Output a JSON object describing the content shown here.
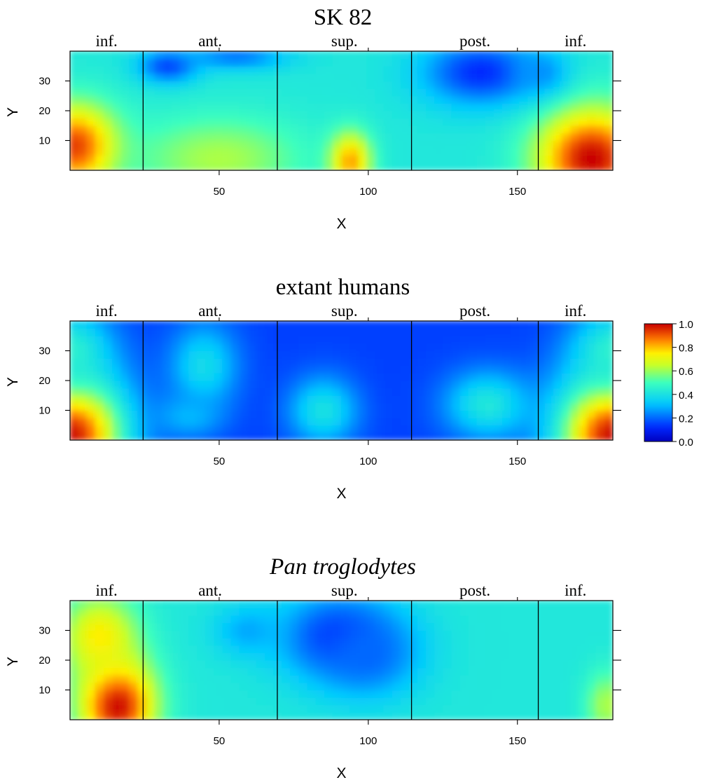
{
  "chart_data": {
    "type": "heatmap",
    "panels": [
      {
        "title": "SK 82",
        "title_style": "normal",
        "xlabel": "X",
        "ylabel": "Y",
        "xlim": [
          0,
          182
        ],
        "ylim": [
          0,
          40
        ],
        "xticks": [
          50,
          100,
          150
        ],
        "yticks": [
          10,
          20,
          30
        ],
        "region_labels": [
          "inf.",
          "ant.",
          "sup.",
          "post.",
          "inf."
        ],
        "region_boundaries": [
          24.5,
          69.5,
          114.5,
          157
        ],
        "hotspots": [
          {
            "x": 2,
            "y": 8,
            "sx": 10,
            "sy": 10,
            "value": 0.95
          },
          {
            "x": 175,
            "y": 4,
            "sx": 13,
            "sy": 12,
            "value": 1.0
          },
          {
            "x": 94,
            "y": 3,
            "sx": 5,
            "sy": 7,
            "value": 0.85
          },
          {
            "x": 50,
            "y": 4,
            "sx": 20,
            "sy": 10,
            "value": 0.62
          },
          {
            "x": 33,
            "y": 35,
            "sx": 7,
            "sy": 4,
            "value": 0.15
          },
          {
            "x": 56,
            "y": 38,
            "sx": 12,
            "sy": 3,
            "value": 0.22
          },
          {
            "x": 138,
            "y": 33,
            "sx": 14,
            "sy": 8,
            "value": 0.12
          },
          {
            "x": 158,
            "y": 33,
            "sx": 6,
            "sy": 5,
            "value": 0.25
          }
        ],
        "background_value": 0.42
      },
      {
        "title": "extant humans",
        "title_style": "normal",
        "xlabel": "X",
        "ylabel": "Y",
        "xlim": [
          0,
          182
        ],
        "ylim": [
          0,
          40
        ],
        "xticks": [
          50,
          100,
          150
        ],
        "yticks": [
          10,
          20,
          30
        ],
        "region_labels": [
          "inf.",
          "ant.",
          "sup.",
          "post.",
          "inf."
        ],
        "region_boundaries": [
          24.5,
          69.5,
          114.5,
          157
        ],
        "hotspots": [
          {
            "x": 0,
            "y": 2,
            "sx": 13,
            "sy": 14,
            "value": 1.0
          },
          {
            "x": 182,
            "y": 2,
            "sx": 13,
            "sy": 14,
            "value": 1.0
          },
          {
            "x": 0,
            "y": 30,
            "sx": 10,
            "sy": 10,
            "value": 0.45
          },
          {
            "x": 182,
            "y": 30,
            "sx": 10,
            "sy": 10,
            "value": 0.45
          },
          {
            "x": 45,
            "y": 25,
            "sx": 8,
            "sy": 10,
            "value": 0.38
          },
          {
            "x": 85,
            "y": 10,
            "sx": 8,
            "sy": 8,
            "value": 0.4
          },
          {
            "x": 140,
            "y": 12,
            "sx": 10,
            "sy": 8,
            "value": 0.42
          },
          {
            "x": 40,
            "y": 8,
            "sx": 8,
            "sy": 5,
            "value": 0.3
          }
        ],
        "background_value": 0.15
      },
      {
        "title": "Pan troglodytes",
        "title_style": "italic",
        "xlabel": "X",
        "ylabel": "Y",
        "xlim": [
          0,
          182
        ],
        "ylim": [
          0,
          40
        ],
        "xticks": [
          50,
          100,
          150
        ],
        "yticks": [
          10,
          20,
          30
        ],
        "region_labels": [
          "inf.",
          "ant.",
          "sup.",
          "post.",
          "inf."
        ],
        "region_boundaries": [
          24.5,
          69.5,
          114.5,
          157
        ],
        "hotspots": [
          {
            "x": 16,
            "y": 5,
            "sx": 9,
            "sy": 11,
            "value": 1.0
          },
          {
            "x": 10,
            "y": 28,
            "sx": 9,
            "sy": 10,
            "value": 0.75
          },
          {
            "x": 180,
            "y": 5,
            "sx": 5,
            "sy": 8,
            "value": 0.62
          },
          {
            "x": 90,
            "y": 28,
            "sx": 14,
            "sy": 10,
            "value": 0.12
          },
          {
            "x": 100,
            "y": 22,
            "sx": 12,
            "sy": 10,
            "value": 0.2
          },
          {
            "x": 60,
            "y": 30,
            "sx": 8,
            "sy": 6,
            "value": 0.28
          }
        ],
        "background_value": 0.42
      }
    ],
    "colorbar": {
      "min": 0.0,
      "max": 1.0,
      "ticks": [
        0.0,
        0.2,
        0.4,
        0.6,
        0.8,
        1.0
      ],
      "tick_labels": [
        "0.0",
        "0.2",
        "0.4",
        "0.6",
        "0.8",
        "1.0"
      ],
      "colors": [
        "#0000c0",
        "#0050ff",
        "#00c8ff",
        "#40ffc0",
        "#ffff00",
        "#ff9000",
        "#e01010",
        "#c00000"
      ]
    }
  }
}
